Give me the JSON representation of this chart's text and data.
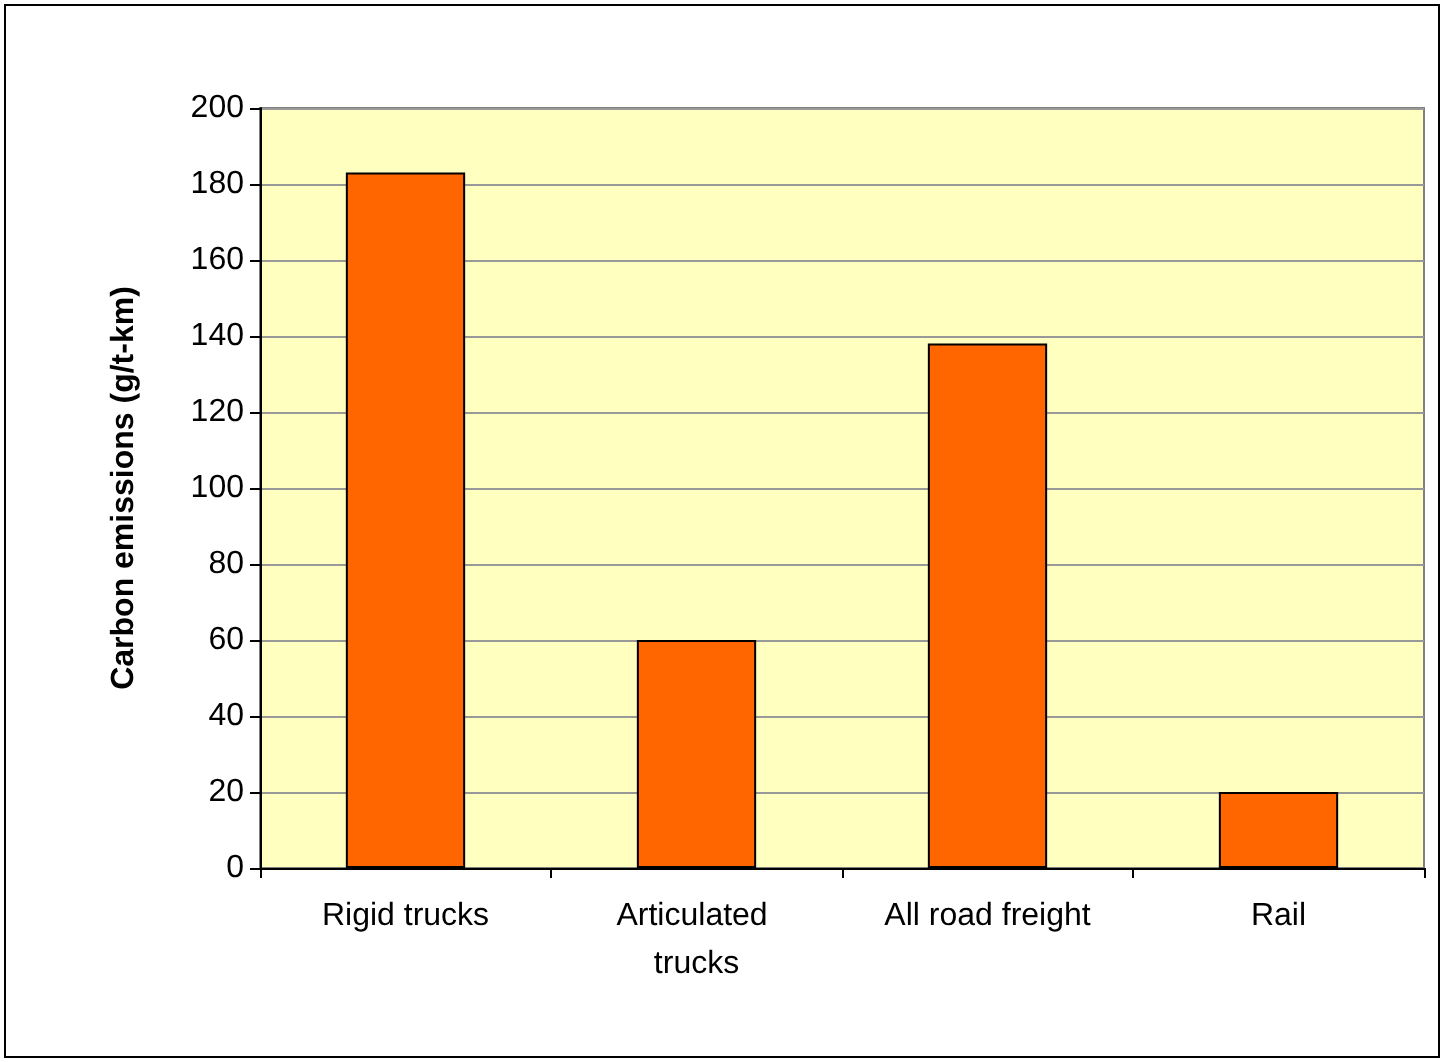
{
  "chart_data": {
    "type": "bar",
    "categories": [
      "Rigid trucks",
      "Articulated trucks",
      "All road freight",
      "Rail"
    ],
    "values": [
      183,
      60,
      138,
      20
    ],
    "color": "#ff6600",
    "ylabel": "Carbon emissions (g/t-km)",
    "ylim": [
      0,
      200
    ],
    "yticks": [
      0,
      20,
      40,
      60,
      80,
      100,
      120,
      140,
      160,
      180,
      200
    ],
    "grid": "y"
  }
}
